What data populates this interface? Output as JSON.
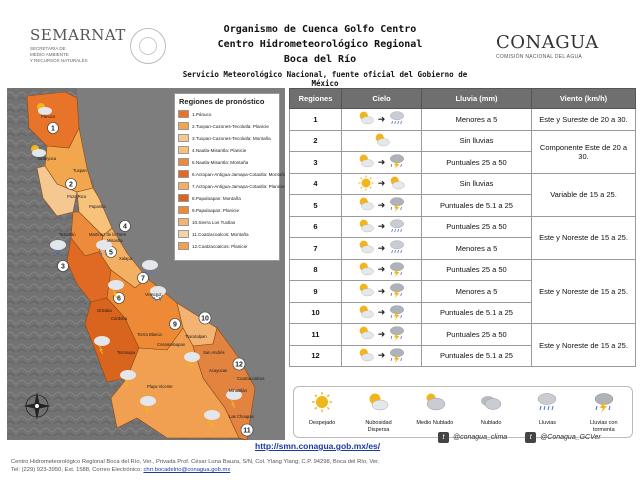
{
  "header": {
    "semarnat_name": "SEMARNAT",
    "semarnat_sub": [
      "SECRETARÍA DE",
      "MEDIO AMBIENTE",
      "Y RECURSOS NATURALES"
    ],
    "title_lines": [
      "Organismo de Cuenca Golfo Centro",
      "Centro Hidrometeorológico Regional",
      "Boca del Río"
    ],
    "subtitle": "Servicio Meteorológico Nacional, fuente oficial del Gobierno de México",
    "conagua_name": "CONAGUA",
    "conagua_sub": "COMISIÓN NACIONAL DEL AGUA"
  },
  "map": {
    "legend_title": "Regiones de pronóstico",
    "legend_items": [
      {
        "label": "1.Pánuco",
        "color": "#e8742a"
      },
      {
        "label": "2.Tuxpan-Cazones-Tecolutla: Planicie",
        "color": "#f2a64e"
      },
      {
        "label": "3.Tuxpan-Cazones-Tecolutla: Montaña",
        "color": "#f5c891"
      },
      {
        "label": "4.Nautla-Misantla: Planicie",
        "color": "#f7c27a"
      },
      {
        "label": "5.Nautla-Misantla: Montaña",
        "color": "#ec8b3c"
      },
      {
        "label": "6.Actopan-Antigua-Jamapa-Cotaxtla: Montaña",
        "color": "#e06a24"
      },
      {
        "label": "7.Actopan-Antigua-Jamapa-Cotaxtla: Planicie",
        "color": "#f4b062"
      },
      {
        "label": "8.Papaloapan: Montaña",
        "color": "#d9641e"
      },
      {
        "label": "9.Papaloapan: Planicie",
        "color": "#ee8a35"
      },
      {
        "label": "10.Sierra Los Tuxtlas",
        "color": "#f3b372"
      },
      {
        "label": "11.Coatzacoalcos: Montaña",
        "color": "#f7d2a8"
      },
      {
        "label": "12.Coatzacoalcos: Planicie",
        "color": "#f0a050"
      }
    ],
    "places": [
      "Pánuco",
      "Tantoyuca",
      "Tuxpan",
      "Poza Rica",
      "Papantla",
      "Martínez de la Torre",
      "Teziutlán",
      "Misantla",
      "Xalapa",
      "Veracruz",
      "Orizaba",
      "Córdoba",
      "Tierra Blanca",
      "Cosamaloapan",
      "Tlacotalpan",
      "San Andrés",
      "Acayucan",
      "Coatzacoalcos",
      "Minatitlán",
      "Las Choapas",
      "Playa Vicente",
      "Tezonapa"
    ]
  },
  "table": {
    "headers": [
      "Regiones",
      "Cielo",
      "Lluvia (mm)",
      "Viento (km/h)"
    ],
    "rows": [
      {
        "region": "1",
        "sky_from": "partly-cloudy",
        "sky_to": "showers",
        "rain": "Menores a 5"
      },
      {
        "region": "2",
        "sky_from": "partly-cloudy",
        "sky_to": "",
        "rain": "Sin lluvias"
      },
      {
        "region": "3",
        "sky_from": "partly-cloudy",
        "sky_to": "thunderstorm",
        "rain": "Puntuales 25 a 50"
      },
      {
        "region": "4",
        "sky_from": "sunny",
        "sky_to": "partly-cloudy",
        "rain": "Sin lluvias"
      },
      {
        "region": "5",
        "sky_from": "partly-cloudy",
        "sky_to": "thunderstorm",
        "rain": "Puntuales de 5.1 a 25"
      },
      {
        "region": "6",
        "sky_from": "partly-cloudy",
        "sky_to": "showers",
        "rain": "Puntuales 25 a 50"
      },
      {
        "region": "7",
        "sky_from": "partly-cloudy",
        "sky_to": "showers",
        "rain": "Menores a 5"
      },
      {
        "region": "8",
        "sky_from": "partly-cloudy",
        "sky_to": "thunderstorm",
        "rain": "Puntuales 25 a 50"
      },
      {
        "region": "9",
        "sky_from": "partly-cloudy",
        "sky_to": "thunderstorm",
        "rain": "Menores a 5"
      },
      {
        "region": "10",
        "sky_from": "partly-cloudy",
        "sky_to": "thunderstorm",
        "rain": "Puntuales de 5.1 a 25"
      },
      {
        "region": "11",
        "sky_from": "partly-cloudy",
        "sky_to": "thunderstorm",
        "rain": "Puntuales 25 a 50"
      },
      {
        "region": "12",
        "sky_from": "partly-cloudy",
        "sky_to": "thunderstorm",
        "rain": "Puntuales de 5.1 a 25"
      }
    ],
    "wind_groups": [
      {
        "text": "Este y Sureste de 20 a 30.",
        "rows": 1
      },
      {
        "text": "Componente Este de 20 a 30.",
        "rows": 2
      },
      {
        "text": "Variable de 15 a 25.",
        "rows": 2
      },
      {
        "text": "Este y Noreste de 15 a 25.",
        "rows": 2
      },
      {
        "text": "Este y Noreste de 15 a 25.",
        "rows": 3
      },
      {
        "text": "Este y Noreste de 15 a 25.",
        "rows": 2
      }
    ]
  },
  "icon_legend": [
    {
      "icon": "sunny",
      "label": "Despejado"
    },
    {
      "icon": "partly-cloudy",
      "label": "Nubosidad Dispersa"
    },
    {
      "icon": "mostly-cloudy",
      "label": "Medio Nublado"
    },
    {
      "icon": "cloudy",
      "label": "Nublado"
    },
    {
      "icon": "showers",
      "label": "Lluvias"
    },
    {
      "icon": "thunderstorm",
      "label": "Lluvias con tormenta"
    }
  ],
  "footer": {
    "url": "http://smn.conagua.gob.mx/es/",
    "twitter_1": "@conagua_clima",
    "twitter_2": "@Conagua_GCVer",
    "address": "Centro Hidrometeorológico Regional Boca del Río, Ver., Privada Prof. César Luna Bauza, S/N, Col. Ylang Ylang, C.P. 94298, Boca del Río, Ver.",
    "phone_prefix": "Tel: (229) 923-3950, Ext. 1588, Correo Electrónico:",
    "email": "chrr.bocadelrio@conagua.gob.mx"
  },
  "colors": {
    "header_gray": "#6f6f6f",
    "link_blue": "#1a3aa0",
    "sun": "#f2b51c",
    "cloud": "#c9cdd3"
  }
}
